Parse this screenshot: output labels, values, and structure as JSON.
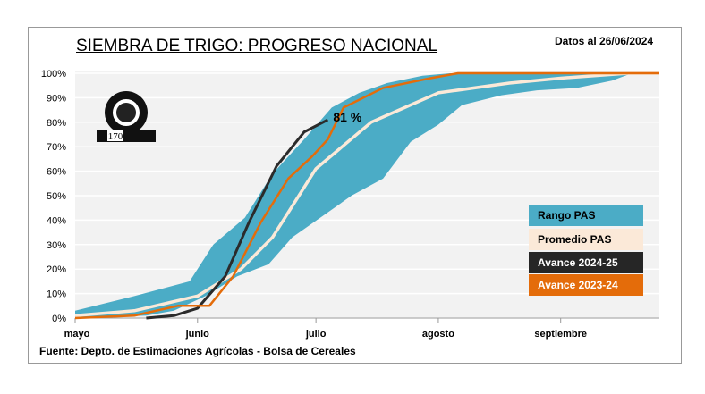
{
  "chart_data": {
    "type": "area",
    "title": "SIEMBRA DE TRIGO: PROGRESO NACIONAL",
    "subtitle": "Datos al 26/06/2024",
    "source": "Fuente: Depto. de Estimaciones Agrícolas - Bolsa de Cereales",
    "x_unit": "days since May 1",
    "xlim": [
      0,
      148
    ],
    "ylim": [
      0,
      100
    ],
    "yticks": [
      "0%",
      "10%",
      "20%",
      "30%",
      "40%",
      "50%",
      "60%",
      "70%",
      "80%",
      "90%",
      "100%"
    ],
    "xticks": [
      {
        "label": "mayo",
        "day": 0
      },
      {
        "label": "junio",
        "day": 31
      },
      {
        "label": "julio",
        "day": 61
      },
      {
        "label": "agosto",
        "day": 92
      },
      {
        "label": "septiembre",
        "day": 123
      }
    ],
    "annotation": "81 %",
    "band": {
      "name": "Rango PAS",
      "color": "#4BACC6",
      "upper": [
        [
          0,
          3
        ],
        [
          15,
          9
        ],
        [
          29,
          15
        ],
        [
          35,
          30
        ],
        [
          43,
          41
        ],
        [
          50,
          59
        ],
        [
          58,
          73
        ],
        [
          65,
          86
        ],
        [
          72,
          92
        ],
        [
          79,
          96
        ],
        [
          88,
          99
        ],
        [
          95,
          100
        ],
        [
          148,
          100
        ]
      ],
      "lower": [
        [
          0,
          0
        ],
        [
          18,
          1
        ],
        [
          25,
          3
        ],
        [
          33,
          9
        ],
        [
          41,
          17
        ],
        [
          49,
          22
        ],
        [
          55,
          33
        ],
        [
          63,
          42
        ],
        [
          70,
          50
        ],
        [
          78,
          57
        ],
        [
          85,
          72
        ],
        [
          92,
          79
        ],
        [
          98,
          87
        ],
        [
          108,
          91
        ],
        [
          117,
          93
        ],
        [
          127,
          94
        ],
        [
          136,
          97
        ],
        [
          141,
          100
        ],
        [
          148,
          100
        ]
      ]
    },
    "series": [
      {
        "name": "Promedio PAS",
        "color": "#FBE9D8",
        "points": [
          [
            0,
            1
          ],
          [
            15,
            3
          ],
          [
            31,
            9
          ],
          [
            42,
            20
          ],
          [
            50,
            33
          ],
          [
            61,
            61
          ],
          [
            75,
            80
          ],
          [
            92,
            92
          ],
          [
            110,
            96
          ],
          [
            123,
            98
          ],
          [
            140,
            100
          ],
          [
            148,
            100
          ]
        ]
      },
      {
        "name": "Avance 2024-25",
        "color": "#2B2B2B",
        "points": [
          [
            18,
            0
          ],
          [
            25,
            1
          ],
          [
            31,
            4
          ],
          [
            38,
            17
          ],
          [
            44,
            39
          ],
          [
            51,
            62
          ],
          [
            58,
            76
          ],
          [
            64,
            81
          ]
        ]
      },
      {
        "name": "Avance 2023-24",
        "color": "#E46C0A",
        "points": [
          [
            0,
            0
          ],
          [
            15,
            1
          ],
          [
            26,
            5
          ],
          [
            34,
            5
          ],
          [
            40,
            17
          ],
          [
            47,
            39
          ],
          [
            54,
            57
          ],
          [
            60,
            66
          ],
          [
            64,
            73
          ],
          [
            68,
            86
          ],
          [
            78,
            94
          ],
          [
            90,
            98
          ],
          [
            97,
            100
          ],
          [
            148,
            100
          ]
        ]
      }
    ]
  },
  "logo_text": "Bolsa de Cereales 170 aniversario 1854-2024"
}
